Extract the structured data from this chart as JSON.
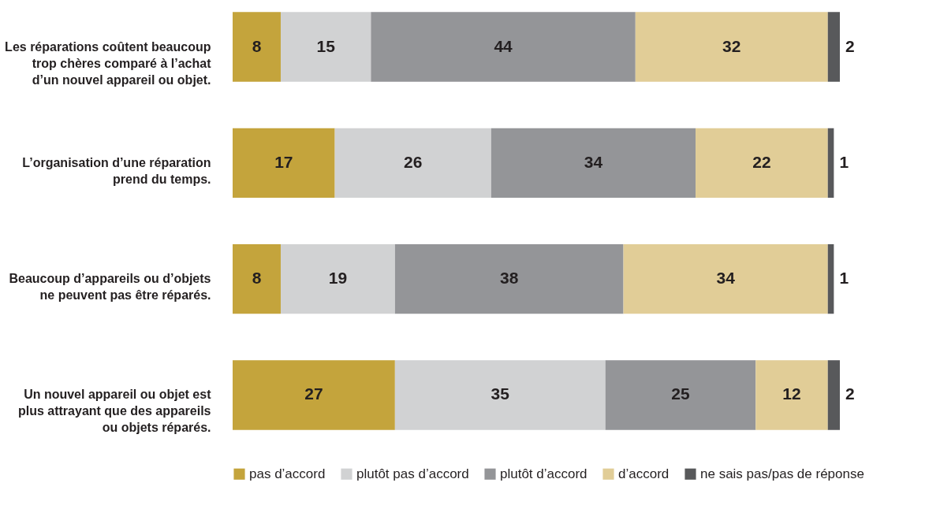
{
  "chart_data": {
    "type": "bar",
    "orientation": "horizontal",
    "stacked": true,
    "data_labels": true,
    "legend": "bottom",
    "grid": false,
    "categories": [
      "Les réparations coûtent beaucoup trop chères comparé à l’achat d’un nouvel appareil ou objet.",
      "L’organisation d’une réparation prend du temps.",
      "Beaucoup d’appareils ou d’objets ne peuvent pas être réparés.",
      "Un nouvel appareil ou objet est plus attrayant que des appareils ou objets réparés."
    ],
    "series": [
      {
        "name": "pas d’accord",
        "color": "#c4a43c",
        "values": [
          8,
          17,
          8,
          27
        ]
      },
      {
        "name": "plutôt pas d’accord",
        "color": "#d1d2d3",
        "values": [
          15,
          26,
          19,
          35
        ]
      },
      {
        "name": "plutôt d’accord",
        "color": "#949598",
        "values": [
          44,
          34,
          38,
          25
        ]
      },
      {
        "name": "d’accord",
        "color": "#e1cd97",
        "values": [
          32,
          22,
          34,
          12
        ]
      },
      {
        "name": "ne sais pas/pas de réponse",
        "color": "#58595b",
        "values": [
          2,
          1,
          1,
          2
        ]
      }
    ]
  }
}
